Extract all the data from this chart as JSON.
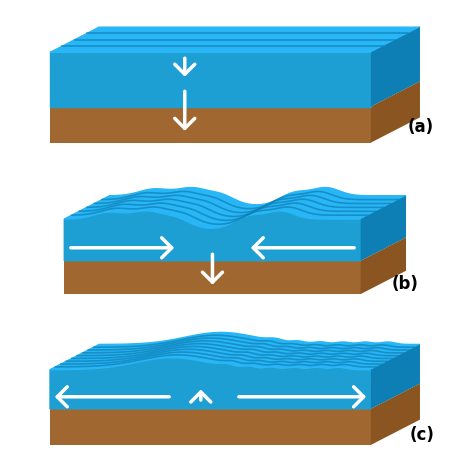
{
  "bg_color": "#ffffff",
  "water_top": "#29b6f6",
  "water_side": "#1e9fd4",
  "water_dark": "#0d7fb5",
  "water_ridge": "#5cc8f5",
  "earth_top": "#c8873a",
  "earth_front": "#a06830",
  "earth_right": "#8a5520",
  "arrow_color": "#ffffff",
  "label_color": "#000000",
  "labels": [
    "(a)",
    "(b)",
    "(c)"
  ],
  "fig_width": 4.74,
  "fig_height": 4.52,
  "dpi": 100
}
